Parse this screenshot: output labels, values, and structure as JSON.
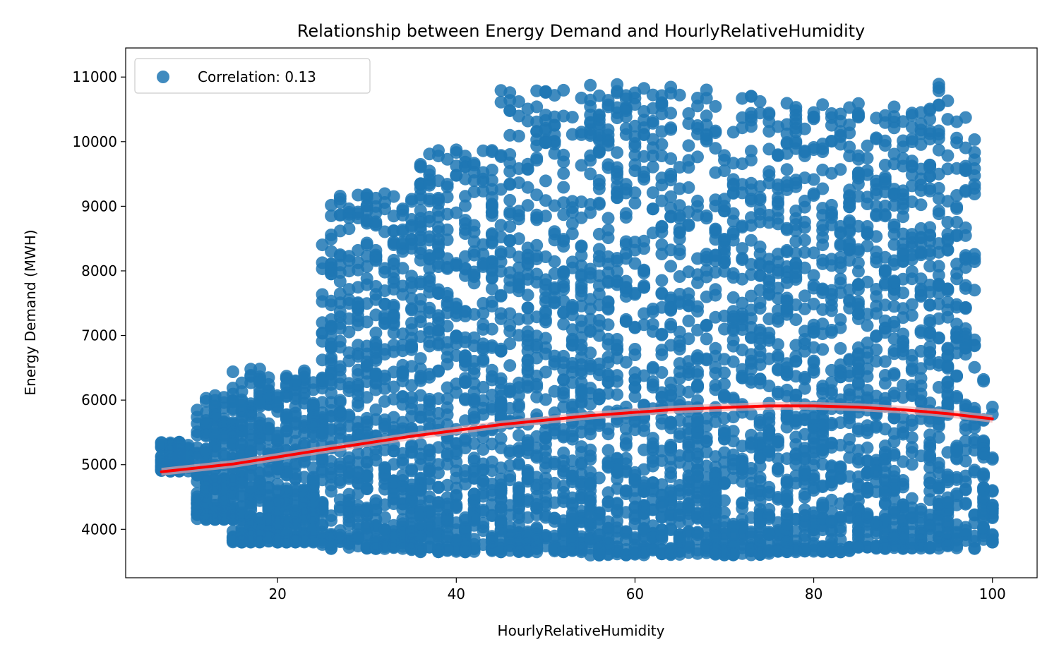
{
  "chart_data": {
    "type": "scatter",
    "title": "Relationship between Energy Demand and HourlyRelativeHumidity",
    "xlabel": "HourlyRelativeHumidity",
    "ylabel": "Energy Demand (MWH)",
    "xlim": [
      3,
      105
    ],
    "ylim": [
      3250,
      11450
    ],
    "x_ticks": [
      20,
      40,
      60,
      80,
      100
    ],
    "y_ticks": [
      4000,
      5000,
      6000,
      7000,
      8000,
      9000,
      10000,
      11000
    ],
    "legend": {
      "label": "Correlation: 0.13",
      "placement": "top-left"
    },
    "colors": {
      "points": "#1f77b4",
      "trend": "#ff0000",
      "band": "#f4a6a6"
    },
    "point_bands": [
      {
        "x_range": [
          7,
          10
        ],
        "y_range": [
          4900,
          5350
        ]
      },
      {
        "x_range": [
          11,
          15
        ],
        "y_range": [
          4150,
          6100
        ]
      },
      {
        "x_range": [
          15,
          25
        ],
        "y_range": [
          3800,
          6500
        ]
      },
      {
        "x_range": [
          25,
          35
        ],
        "y_range": [
          3700,
          9200
        ]
      },
      {
        "x_range": [
          35,
          45
        ],
        "y_range": [
          3650,
          9900
        ]
      },
      {
        "x_range": [
          45,
          55
        ],
        "y_range": [
          3650,
          10800
        ]
      },
      {
        "x_range": [
          55,
          65
        ],
        "y_range": [
          3600,
          10900
        ]
      },
      {
        "x_range": [
          65,
          75
        ],
        "y_range": [
          3600,
          10800
        ]
      },
      {
        "x_range": [
          75,
          85
        ],
        "y_range": [
          3650,
          10600
        ]
      },
      {
        "x_range": [
          85,
          93
        ],
        "y_range": [
          3700,
          10550
        ]
      },
      {
        "x_range": [
          93,
          98
        ],
        "y_range": [
          3700,
          11100
        ]
      },
      {
        "x_range": [
          99,
          100
        ],
        "y_range": [
          3800,
          6350
        ]
      }
    ],
    "trend_line": [
      {
        "x": 7,
        "y": 4890
      },
      {
        "x": 15,
        "y": 5010
      },
      {
        "x": 25,
        "y": 5230
      },
      {
        "x": 35,
        "y": 5440
      },
      {
        "x": 45,
        "y": 5620
      },
      {
        "x": 55,
        "y": 5760
      },
      {
        "x": 65,
        "y": 5860
      },
      {
        "x": 75,
        "y": 5910
      },
      {
        "x": 80,
        "y": 5910
      },
      {
        "x": 85,
        "y": 5890
      },
      {
        "x": 90,
        "y": 5850
      },
      {
        "x": 95,
        "y": 5790
      },
      {
        "x": 100,
        "y": 5710
      }
    ],
    "band_halfwidth": 60
  }
}
